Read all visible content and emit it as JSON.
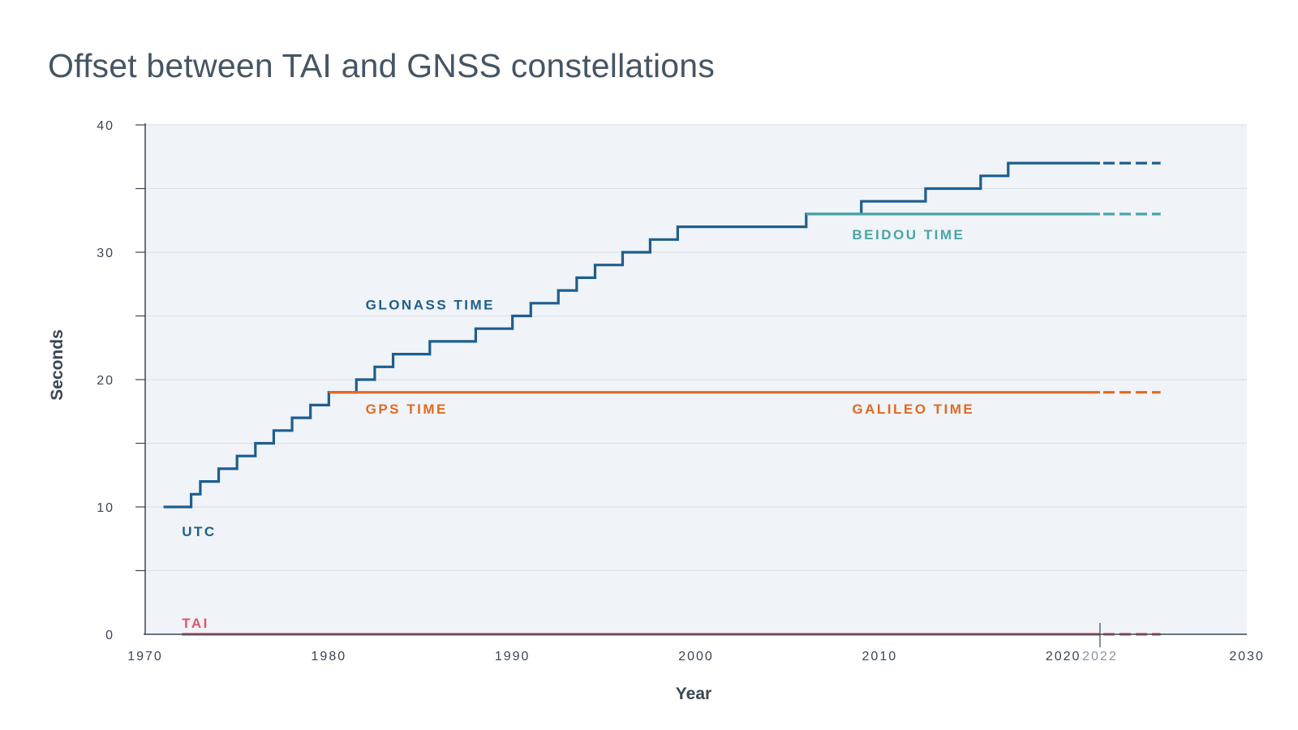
{
  "chart_data": {
    "type": "line",
    "title": "Offset between TAI and GNSS constellations",
    "xlabel": "Year",
    "ylabel": "Seconds",
    "xlim": [
      1970,
      2030
    ],
    "ylim": [
      0,
      40
    ],
    "x_ticks": [
      "1970",
      "1980",
      "1990",
      "2000",
      "2010",
      "2020",
      "2030"
    ],
    "x_marker": "2022",
    "y_ticks": [
      "0",
      "10",
      "20",
      "30",
      "40"
    ],
    "y_minor_ticks": [
      5,
      15,
      25,
      35
    ],
    "grid": true,
    "projection_dashed": {
      "from": 2022,
      "to": 2025.3
    },
    "colors": {
      "utc": "#1d5e8e",
      "beidou": "#4aa5a6",
      "gps": "#e06a24",
      "tai": "#e0566a",
      "background": "#f0f3f7",
      "grid": "#dde2e8",
      "axis": "#3a4652"
    },
    "series": [
      {
        "name": "UTC",
        "also_labeled": "GLONASS TIME",
        "color": "#1d5e8e",
        "step": true,
        "points": [
          [
            1971.0,
            10
          ],
          [
            1972.5,
            11
          ],
          [
            1973.0,
            12
          ],
          [
            1974.0,
            13
          ],
          [
            1975.0,
            14
          ],
          [
            1976.0,
            15
          ],
          [
            1977.0,
            16
          ],
          [
            1978.0,
            17
          ],
          [
            1979.0,
            18
          ],
          [
            1980.0,
            19
          ],
          [
            1981.5,
            20
          ],
          [
            1982.5,
            21
          ],
          [
            1983.5,
            22
          ],
          [
            1985.5,
            23
          ],
          [
            1988.0,
            24
          ],
          [
            1990.0,
            25
          ],
          [
            1991.0,
            26
          ],
          [
            1992.5,
            27
          ],
          [
            1993.5,
            28
          ],
          [
            1994.5,
            29
          ],
          [
            1996.0,
            30
          ],
          [
            1997.5,
            31
          ],
          [
            1999.0,
            32
          ],
          [
            2006.0,
            33
          ],
          [
            2009.0,
            34
          ],
          [
            2012.5,
            35
          ],
          [
            2015.5,
            36
          ],
          [
            2017.0,
            37
          ],
          [
            2022.0,
            37
          ]
        ]
      },
      {
        "name": "BEIDOU TIME",
        "color": "#4aa5a6",
        "step": true,
        "points": [
          [
            2006.0,
            33
          ],
          [
            2022.0,
            33
          ]
        ]
      },
      {
        "name": "GPS TIME",
        "also_labeled": "GALILEO TIME",
        "color": "#e06a24",
        "step": true,
        "points": [
          [
            1980.0,
            19
          ],
          [
            2022.0,
            19
          ]
        ]
      },
      {
        "name": "TAI",
        "color": "#e0566a",
        "step": true,
        "points": [
          [
            1972.0,
            0
          ],
          [
            2022.0,
            0
          ]
        ]
      }
    ],
    "labels": [
      {
        "text": "UTC",
        "x": 1972.0,
        "y": 8.1,
        "color": "#1d5e8e"
      },
      {
        "text": "GLONASS TIME",
        "x": 1982.0,
        "y": 25.9,
        "color": "#1d5e8e"
      },
      {
        "text": "BEIDOU TIME",
        "x": 2008.5,
        "y": 31.4,
        "color": "#4aa5a6"
      },
      {
        "text": "GPS TIME",
        "x": 1982.0,
        "y": 17.7,
        "color": "#e06a24"
      },
      {
        "text": "GALILEO TIME",
        "x": 2008.5,
        "y": 17.7,
        "color": "#e06a24"
      },
      {
        "text": "TAI",
        "x": 1972.0,
        "y": 0.9,
        "color": "#e0566a"
      }
    ]
  }
}
